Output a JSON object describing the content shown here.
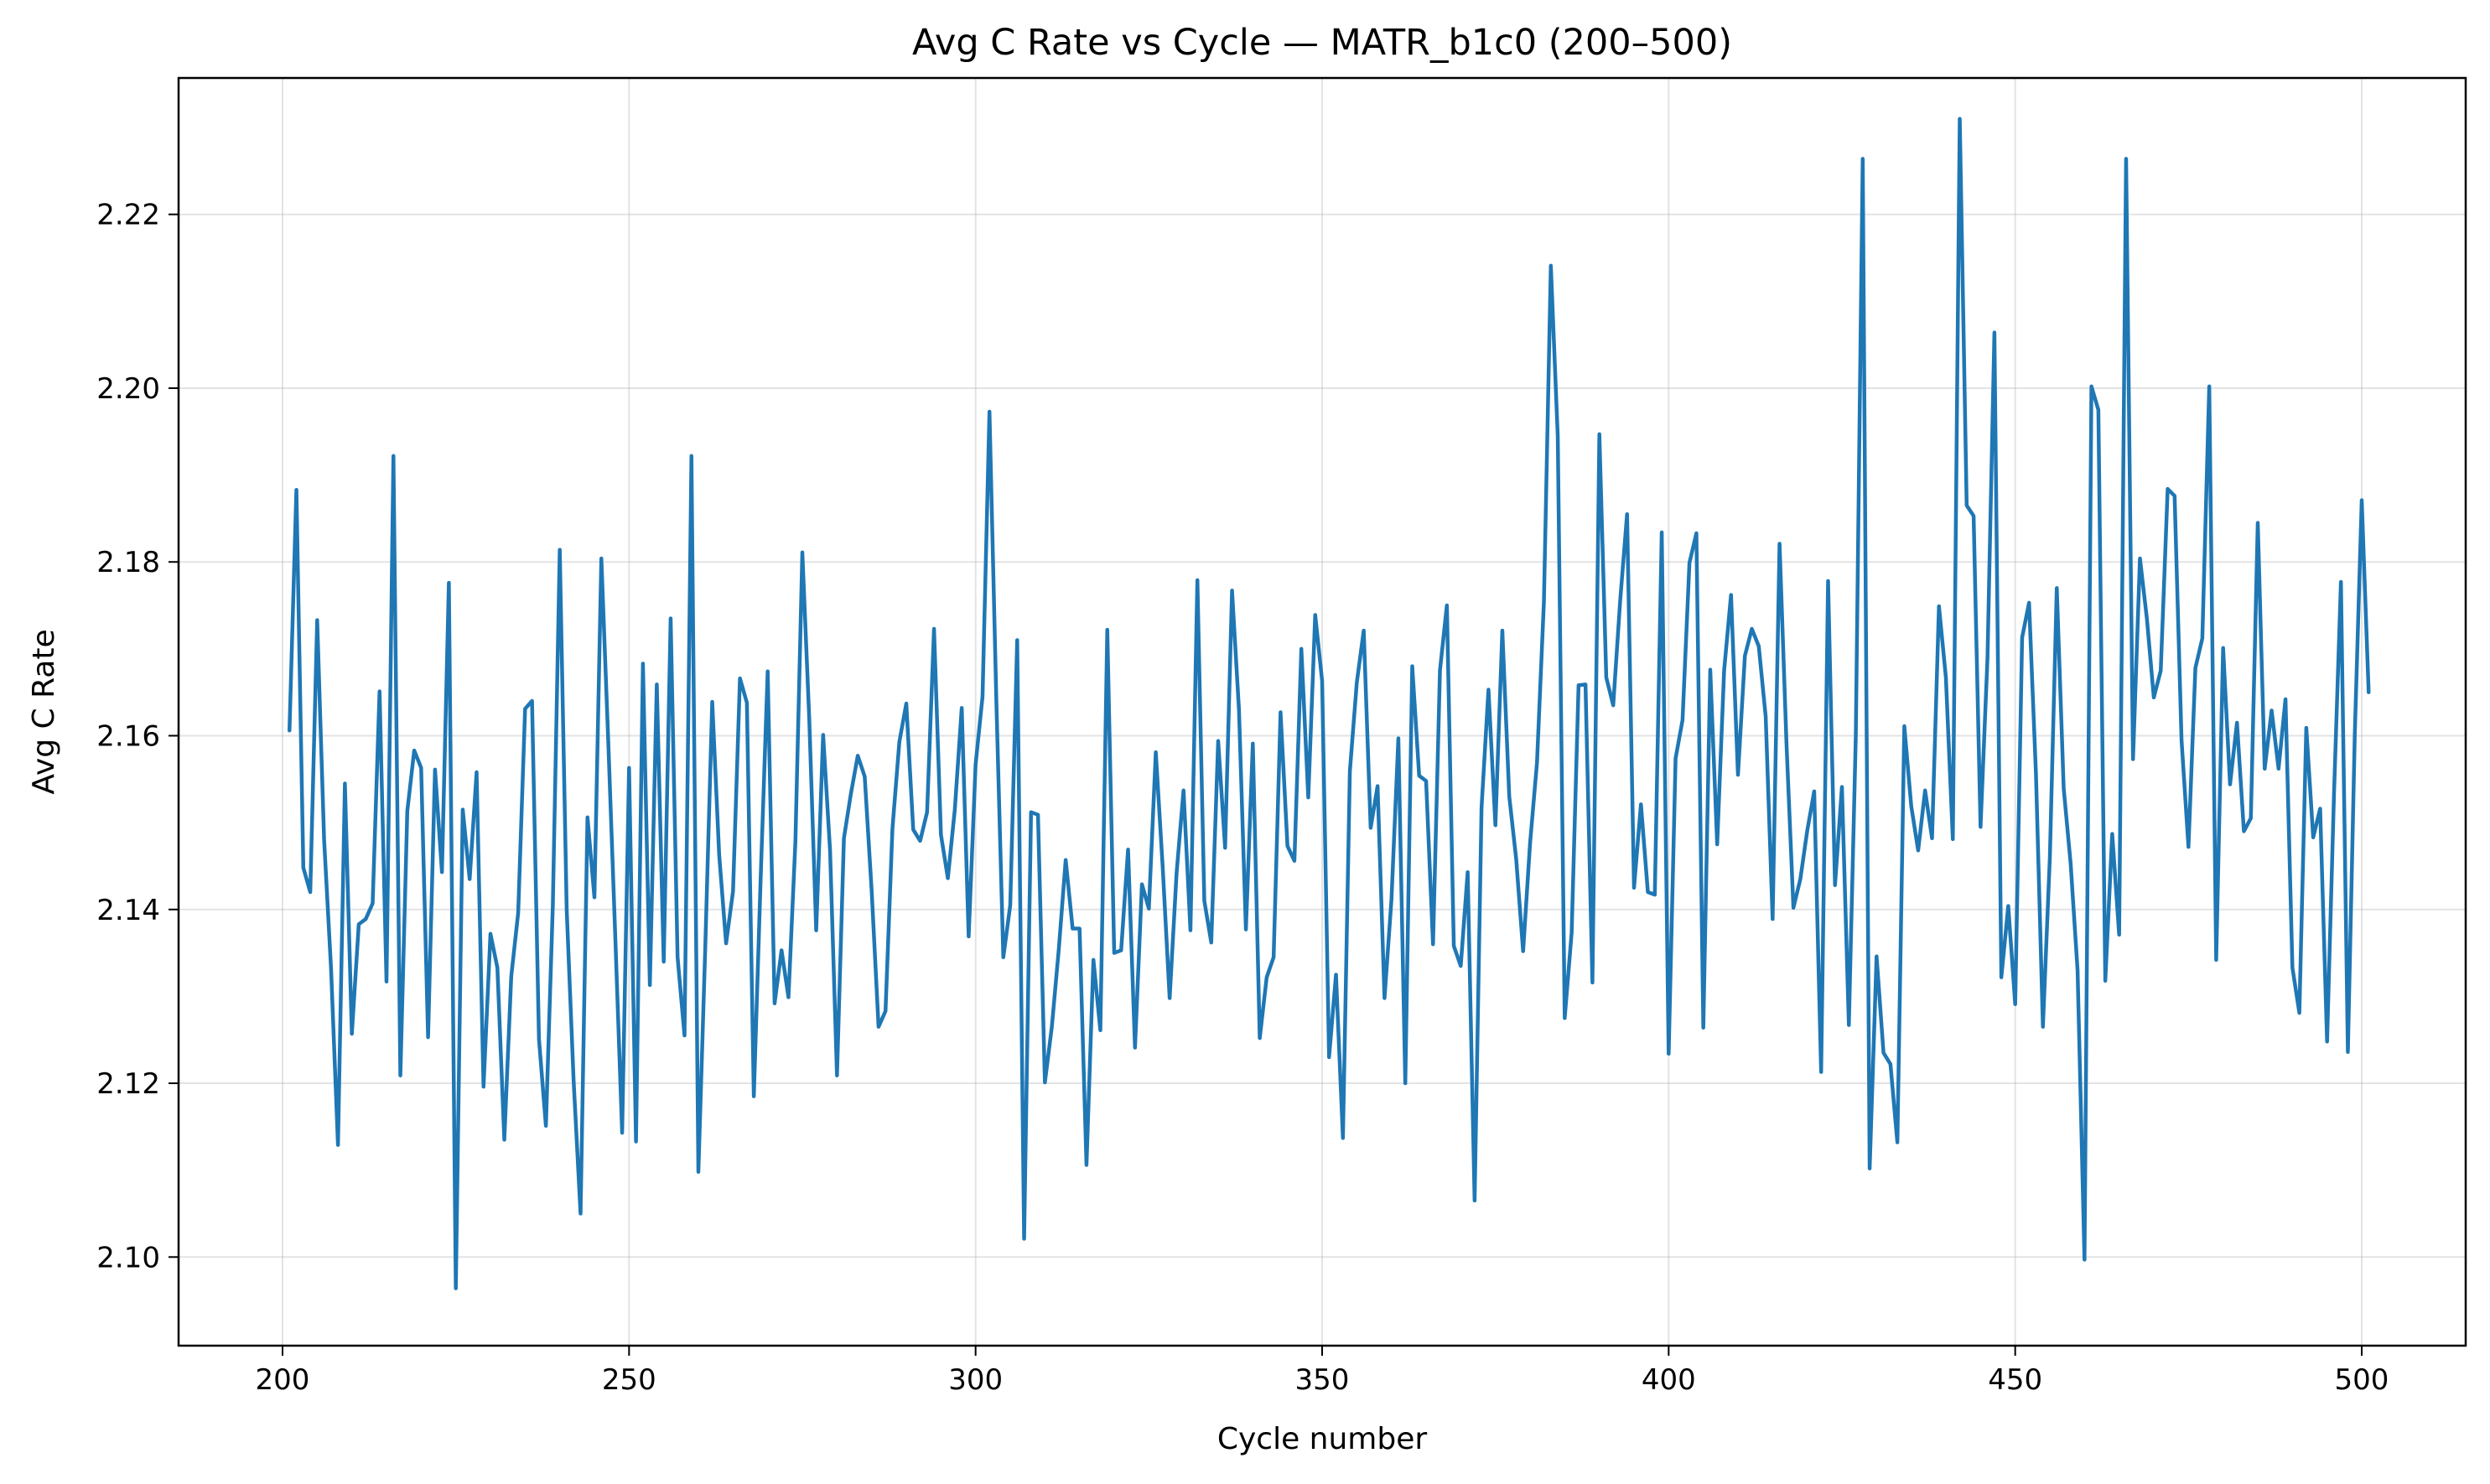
{
  "chart_data": {
    "type": "line",
    "title": "Avg C Rate vs Cycle — MATR_b1c0 (200–500)",
    "xlabel": "Cycle number",
    "ylabel": "Avg C Rate",
    "xlim": [
      185,
      515
    ],
    "ylim": [
      2.0898,
      2.2357
    ],
    "xticks": [
      200,
      250,
      300,
      350,
      400,
      450,
      500
    ],
    "xtick_labels": [
      "200",
      "250",
      "300",
      "350",
      "400",
      "450",
      "500"
    ],
    "yticks": [
      2.1,
      2.12,
      2.14,
      2.16,
      2.18,
      2.2,
      2.22
    ],
    "ytick_labels": [
      "2.10",
      "2.12",
      "2.14",
      "2.16",
      "2.18",
      "2.20",
      "2.22"
    ],
    "grid": true,
    "legend": "none",
    "line_color": "#1f77b4",
    "series": [
      {
        "x_start": 201,
        "x_step": 1,
        "values": [
          2.1606,
          2.1883,
          2.1448,
          2.142,
          2.1733,
          2.148,
          2.1332,
          2.1129,
          2.1545,
          2.1257,
          2.1383,
          2.1389,
          2.1407,
          2.1651,
          2.1317,
          2.1922,
          2.1209,
          2.1513,
          2.1583,
          2.1563,
          2.1253,
          2.1561,
          2.1443,
          2.1776,
          2.0964,
          2.1515,
          2.1435,
          2.1558,
          2.1196,
          2.1372,
          2.1333,
          2.1135,
          2.1323,
          2.1396,
          2.1631,
          2.164,
          2.1251,
          2.1151,
          2.1405,
          2.1814,
          2.14,
          2.1203,
          2.105,
          2.1506,
          2.1414,
          2.1804,
          2.1593,
          2.1371,
          2.1143,
          2.1563,
          2.1133,
          2.1683,
          2.1313,
          2.1659,
          2.134,
          2.1735,
          2.1345,
          2.1255,
          2.1922,
          2.1098,
          2.1358,
          2.1639,
          2.1463,
          2.1361,
          2.1421,
          2.1666,
          2.1638,
          2.1185,
          2.1439,
          2.1674,
          2.1292,
          2.1353,
          2.1299,
          2.1478,
          2.1811,
          2.1619,
          2.1376,
          2.1601,
          2.1468,
          2.1209,
          2.1482,
          2.1533,
          2.1577,
          2.1553,
          2.1422,
          2.1265,
          2.1283,
          2.1493,
          2.1593,
          2.1637,
          2.1492,
          2.1479,
          2.1512,
          2.1723,
          2.1486,
          2.1436,
          2.1515,
          2.1632,
          2.1369,
          2.1567,
          2.1645,
          2.1973,
          2.1638,
          2.1345,
          2.1405,
          2.171,
          2.1021,
          2.1512,
          2.1509,
          2.1201,
          2.1265,
          2.1354,
          2.1457,
          2.1378,
          2.1378,
          2.1106,
          2.1342,
          2.1261,
          2.1722,
          2.135,
          2.1353,
          2.1469,
          2.1241,
          2.1429,
          2.1401,
          2.1581,
          2.1448,
          2.1298,
          2.1442,
          2.1537,
          2.1376,
          2.1779,
          2.141,
          2.1362,
          2.1594,
          2.1471,
          2.1767,
          2.163,
          2.1377,
          2.1591,
          2.1252,
          2.1322,
          2.1345,
          2.1627,
          2.1473,
          2.1456,
          2.17,
          2.1529,
          2.1739,
          2.1663,
          2.123,
          2.1325,
          2.1137,
          2.1559,
          2.1661,
          2.1721,
          2.1494,
          2.1542,
          2.1298,
          2.1411,
          2.1597,
          2.12,
          2.168,
          2.1554,
          2.1548,
          2.136,
          2.1675,
          2.175,
          2.1358,
          2.1335,
          2.1443,
          2.1065,
          2.1517,
          2.1653,
          2.1497,
          2.1721,
          2.153,
          2.1458,
          2.1352,
          2.1476,
          2.1569,
          2.1754,
          2.2141,
          2.1944,
          2.1275,
          2.1373,
          2.1658,
          2.1659,
          2.1316,
          2.1947,
          2.1667,
          2.1635,
          2.1755,
          2.1855,
          2.1425,
          2.1521,
          2.142,
          2.1417,
          2.1834,
          2.1234,
          2.1574,
          2.1618,
          2.1799,
          2.1833,
          2.1264,
          2.1676,
          2.1475,
          2.1675,
          2.1762,
          2.1555,
          2.1692,
          2.1723,
          2.1703,
          2.1622,
          2.1389,
          2.1821,
          2.1591,
          2.1402,
          2.1435,
          2.1491,
          2.1536,
          2.1213,
          2.1778,
          2.1428,
          2.1541,
          2.1267,
          2.1599,
          2.2264,
          2.1102,
          2.1346,
          2.1235,
          2.1222,
          2.1132,
          2.1611,
          2.1519,
          2.1468,
          2.1537,
          2.1482,
          2.1749,
          2.1667,
          2.1481,
          2.231,
          2.1865,
          2.1853,
          2.1495,
          2.1689,
          2.2064,
          2.1322,
          2.1404,
          2.1291,
          2.1713,
          2.1753,
          2.1555,
          2.1265,
          2.146,
          2.177,
          2.1539,
          2.1453,
          2.133,
          2.0997,
          2.2002,
          2.1975,
          2.1318,
          2.1487,
          2.1371,
          2.2264,
          2.1573,
          2.1804,
          2.1735,
          2.1644,
          2.1675,
          2.1884,
          2.1876,
          2.1595,
          2.1472,
          2.1678,
          2.1712,
          2.2002,
          2.1342,
          2.1701,
          2.1544,
          2.1615,
          2.149,
          2.1505,
          2.1845,
          2.1562,
          2.1629,
          2.1562,
          2.1642,
          2.1333,
          2.1281,
          2.1609,
          2.1483,
          2.1516,
          2.1248,
          2.1533,
          2.1777,
          2.1236,
          2.1602,
          2.1871,
          2.165
        ]
      }
    ]
  }
}
